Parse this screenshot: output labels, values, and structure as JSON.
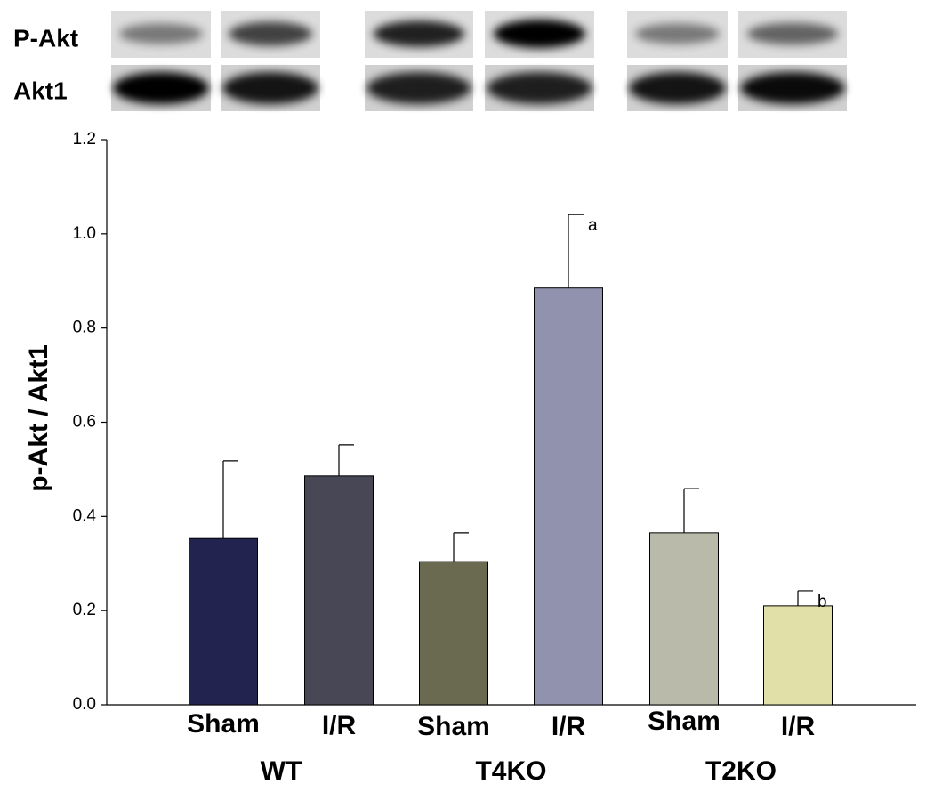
{
  "chart_data": {
    "type": "bar",
    "y_label": "p-Akt / Akt1",
    "blot_labels": [
      "P-Akt",
      "Akt1"
    ],
    "categories": [
      "Sham",
      "I/R",
      "Sham",
      "I/R",
      "Sham",
      "I/R"
    ],
    "groups": [
      "WT",
      "T4KO",
      "T2KO"
    ],
    "values": [
      0.353,
      0.486,
      0.304,
      0.885,
      0.365,
      0.21
    ],
    "errors": [
      0.165,
      0.066,
      0.061,
      0.156,
      0.094,
      0.032
    ],
    "annotations": [
      null,
      null,
      null,
      "a",
      null,
      "b"
    ],
    "colors": [
      "#232350",
      "#474755",
      "#696a50",
      "#9192ad",
      "#b9baa9",
      "#e0e0a8"
    ],
    "ylim": [
      0,
      1.2
    ],
    "yticks": [
      {
        "value": 0,
        "label": "0.0"
      },
      0.2,
      0.4,
      0.6,
      0.8,
      {
        "value": 1,
        "label": "1.0"
      },
      1.2
    ]
  }
}
